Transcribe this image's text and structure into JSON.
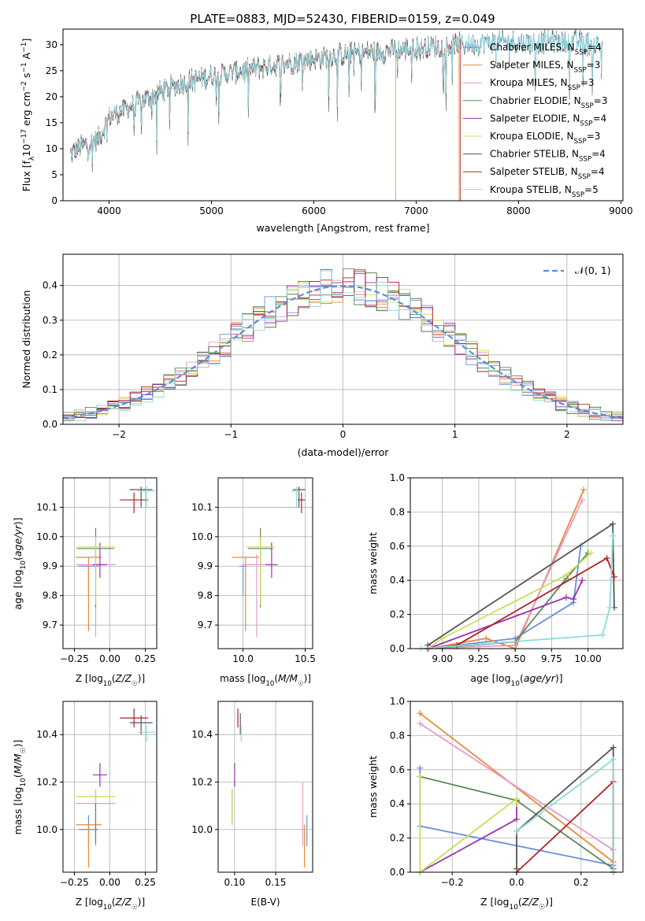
{
  "title": "PLATE=0883, MJD=52430, FIBERID=0159, z=0.049",
  "colors": [
    "#6a8fdb",
    "#e8893a",
    "#e99ac6",
    "#5a8a5a",
    "#9933b3",
    "#c7e05a",
    "#555555",
    "#b22222",
    "#8fd9dc"
  ],
  "chart_data": [
    {
      "id": "spectrum",
      "type": "line",
      "xlabel": "wavelength [Angstrom, rest frame]",
      "ylabel": "Flux [f_λ10^-17 erg cm^-2 s^-1 A^-1]",
      "xlim": [
        3550,
        9020
      ],
      "ylim": [
        0,
        33
      ],
      "xticks": [
        4000,
        5000,
        6000,
        7000,
        8000,
        9000
      ],
      "yticks": [
        0,
        5,
        10,
        15,
        20,
        25,
        30
      ],
      "continuum_x": [
        3620,
        3700,
        3800,
        3900,
        4000,
        4100,
        4200,
        4300,
        4400,
        4500,
        4700,
        5000,
        5300,
        5600,
        5900,
        6200,
        6500,
        6800,
        7100,
        7400,
        7700,
        8000,
        8300,
        8600,
        8800
      ],
      "continuum_y": [
        9,
        10,
        11,
        12,
        16,
        17,
        18,
        19,
        20,
        21,
        22.5,
        24,
        25,
        26,
        27,
        28,
        28.5,
        29,
        29.5,
        30,
        30.5,
        30.5,
        30.5,
        30.5,
        30
      ],
      "series": [
        {
          "name": "Chabrier MILES, N_SSP=4",
          "xmax": 8820
        },
        {
          "name": "Salpeter MILES, N_SSP=3",
          "xmax": 7420
        },
        {
          "name": "Kroupa MILES, N_SSP=3",
          "xmax": 7430
        },
        {
          "name": "Chabrier ELODIE, N_SSP=3",
          "xmax": 6800
        },
        {
          "name": "Salpeter ELODIE, N_SSP=4",
          "xmax": 6800
        },
        {
          "name": "Kroupa ELODIE, N_SSP=3",
          "xmax": 6800
        },
        {
          "name": "Chabrier STELIB, N_SSP=4",
          "xmax": 8820
        },
        {
          "name": "Salpeter STELIB, N_SSP=4",
          "xmax": 7430
        },
        {
          "name": "Kroupa STELIB, N_SSP=5",
          "xmax": 8820
        }
      ]
    },
    {
      "id": "residuals",
      "type": "line",
      "xlabel": "(data-model)/error",
      "ylabel": "Normed distribution",
      "xlim": [
        -2.5,
        2.5
      ],
      "ylim": [
        0,
        0.49
      ],
      "xticks": [
        -2,
        -1,
        0,
        1,
        2
      ],
      "yticks": [
        0.0,
        0.1,
        0.2,
        0.3,
        0.4
      ],
      "legend": "𝒩(0, 1)",
      "bin_width": 0.1
    },
    {
      "id": "age-vs-Z",
      "type": "scatter",
      "xlabel": "Z [log10(Z/Z☉)]",
      "ylabel": "age [log10(age/yr)]",
      "xlim": [
        -0.33,
        0.33
      ],
      "ylim": [
        9.62,
        10.2
      ],
      "xticks": [
        -0.25,
        0.0,
        0.25
      ],
      "xtick_labels": [
        "−0.25",
        "0.00",
        "0.25"
      ],
      "yticks": [
        9.7,
        9.8,
        9.9,
        10.0,
        10.1
      ],
      "yticklabels": [
        "9.7",
        "9.8",
        "9.9",
        "10.0",
        "10.1"
      ],
      "points": [
        {
          "x": -0.15,
          "y": 9.9,
          "xerr": 0.07,
          "ylo": 9.8,
          "yhi": 9.9
        },
        {
          "x": -0.15,
          "y": 9.93,
          "xerr": 0.09,
          "ylo": 9.68,
          "yhi": 9.93
        },
        {
          "x": -0.1,
          "y": 9.905,
          "xerr": 0.14,
          "ylo": 9.66,
          "yhi": 9.94
        },
        {
          "x": -0.1,
          "y": 9.96,
          "xerr": 0.13,
          "ylo": 9.76,
          "yhi": 10.03
        },
        {
          "x": -0.07,
          "y": 9.905,
          "xerr": 0.05,
          "ylo": 9.86,
          "yhi": 9.98
        },
        {
          "x": -0.1,
          "y": 9.965,
          "xerr": 0.14,
          "ylo": 9.77,
          "yhi": 10.0
        },
        {
          "x": 0.22,
          "y": 10.16,
          "xerr": 0.08,
          "ylo": 10.1,
          "yhi": 10.17
        },
        {
          "x": 0.17,
          "y": 10.125,
          "xerr": 0.1,
          "ylo": 10.08,
          "yhi": 10.15
        },
        {
          "x": 0.26,
          "y": 10.155,
          "xerr": 0.06,
          "ylo": 10.1,
          "yhi": 10.17
        }
      ]
    },
    {
      "id": "age-vs-mass",
      "type": "scatter",
      "xlabel": "mass [log10(M/M☉)]",
      "ylabel": "",
      "xlim": [
        9.8,
        10.56
      ],
      "ylim": [
        9.62,
        10.2
      ],
      "xticks": [
        10.0,
        10.5
      ],
      "xtick_labels": [
        "10.0",
        "10.5"
      ],
      "yticks": [
        9.7,
        9.8,
        9.9,
        10.0,
        10.1
      ],
      "yticklabels": [
        "9.7",
        "9.8",
        "9.9",
        "10.0",
        "10.1"
      ],
      "points": [
        {
          "x": 10.0,
          "y": 9.9,
          "xerr": 0.03,
          "ylo": 9.8,
          "yhi": 9.9
        },
        {
          "x": 10.02,
          "y": 9.93,
          "xerr": 0.11,
          "ylo": 9.68,
          "yhi": 9.93
        },
        {
          "x": 10.11,
          "y": 9.905,
          "xerr": 0.11,
          "ylo": 9.66,
          "yhi": 9.94
        },
        {
          "x": 10.14,
          "y": 9.96,
          "xerr": 0.1,
          "ylo": 9.76,
          "yhi": 10.03
        },
        {
          "x": 10.23,
          "y": 9.905,
          "xerr": 0.05,
          "ylo": 9.86,
          "yhi": 9.98
        },
        {
          "x": 10.14,
          "y": 9.965,
          "xerr": 0.12,
          "ylo": 9.77,
          "yhi": 10.0
        },
        {
          "x": 10.45,
          "y": 10.16,
          "xerr": 0.05,
          "ylo": 10.1,
          "yhi": 10.17
        },
        {
          "x": 10.47,
          "y": 10.125,
          "xerr": 0.03,
          "ylo": 10.08,
          "yhi": 10.15
        },
        {
          "x": 10.43,
          "y": 10.155,
          "xerr": 0.04,
          "ylo": 10.1,
          "yhi": 10.17
        }
      ]
    },
    {
      "id": "mass-weight-vs-age",
      "type": "line",
      "xlabel": "age [log10(age/yr)]",
      "ylabel": "mass weight",
      "xlim": [
        8.78,
        10.24
      ],
      "ylim": [
        0,
        1.0
      ],
      "xticks": [
        9.0,
        9.25,
        9.5,
        9.75,
        10.0
      ],
      "xtick_labels": [
        "9.00",
        "9.25",
        "9.50",
        "9.75",
        "10.00"
      ],
      "yticks": [
        0.0,
        0.2,
        0.4,
        0.6,
        0.8,
        1.0
      ],
      "yticklabels": [
        "0.0",
        "0.2",
        "0.4",
        "0.6",
        "0.8",
        "1.0"
      ],
      "series": [
        {
          "name": "Chabrier MILES",
          "x": [
            8.9,
            9.5,
            9.9,
            9.95
          ],
          "y": [
            0.0,
            0.06,
            0.27,
            0.6
          ]
        },
        {
          "name": "Salpeter MILES",
          "x": [
            8.9,
            9.3,
            9.5,
            9.97
          ],
          "y": [
            0.0,
            0.06,
            0.0,
            0.93
          ]
        },
        {
          "name": "Kroupa MILES",
          "x": [
            8.9,
            9.5,
            9.96
          ],
          "y": [
            0.0,
            0.02,
            0.87
          ]
        },
        {
          "name": "Chabrier ELODIE",
          "x": [
            8.9,
            9.5,
            9.85,
            10.0
          ],
          "y": [
            0.0,
            0.04,
            0.41,
            0.56
          ]
        },
        {
          "name": "Salpeter ELODIE",
          "x": [
            8.9,
            9.85,
            9.9,
            9.96
          ],
          "y": [
            0.0,
            0.3,
            0.29,
            0.4
          ]
        },
        {
          "name": "Kroupa ELODIE",
          "x": [
            8.9,
            9.0,
            9.85,
            10.02
          ],
          "y": [
            0.0,
            0.06,
            0.43,
            0.56
          ]
        },
        {
          "name": "Chabrier STELIB",
          "x": [
            8.9,
            10.17,
            10.18
          ],
          "y": [
            0.02,
            0.73,
            0.24
          ]
        },
        {
          "name": "Salpeter STELIB",
          "x": [
            8.9,
            9.1,
            10.13,
            10.18
          ],
          "y": [
            0.0,
            0.02,
            0.53,
            0.42
          ]
        },
        {
          "name": "Kroupa STELIB",
          "x": [
            8.85,
            10.1,
            10.15,
            10.17
          ],
          "y": [
            0.0,
            0.08,
            0.24,
            0.66
          ]
        }
      ]
    },
    {
      "id": "mass-vs-Z",
      "type": "scatter",
      "xlabel": "Z [log10(Z/Z☉)]",
      "ylabel": "mass [log10(M/M☉)]",
      "xlim": [
        -0.33,
        0.33
      ],
      "ylim": [
        9.82,
        10.54
      ],
      "xticks": [
        -0.25,
        0.0,
        0.25
      ],
      "xtick_labels": [
        "−0.25",
        "0.00",
        "0.25"
      ],
      "yticks": [
        10.0,
        10.2,
        10.4
      ],
      "yticklabels": [
        "10.0",
        "10.2",
        "10.4"
      ],
      "points": [
        {
          "x": -0.15,
          "y": 10.0,
          "xerr": 0.07,
          "ylo": 9.93,
          "yhi": 10.06
        },
        {
          "x": -0.15,
          "y": 10.02,
          "xerr": 0.09,
          "ylo": 9.84,
          "yhi": 10.02
        },
        {
          "x": -0.1,
          "y": 10.11,
          "xerr": 0.14,
          "ylo": 9.93,
          "yhi": 10.13
        },
        {
          "x": -0.1,
          "y": 10.14,
          "xerr": 0.13,
          "ylo": 9.94,
          "yhi": 10.17
        },
        {
          "x": -0.07,
          "y": 10.23,
          "xerr": 0.05,
          "ylo": 10.18,
          "yhi": 10.28
        },
        {
          "x": -0.1,
          "y": 10.14,
          "xerr": 0.14,
          "ylo": 10.11,
          "yhi": 10.17
        },
        {
          "x": 0.22,
          "y": 10.45,
          "xerr": 0.08,
          "ylo": 10.4,
          "yhi": 10.48
        },
        {
          "x": 0.17,
          "y": 10.47,
          "xerr": 0.1,
          "ylo": 10.43,
          "yhi": 10.51
        },
        {
          "x": 0.26,
          "y": 10.41,
          "xerr": 0.06,
          "ylo": 10.37,
          "yhi": 10.44
        }
      ]
    },
    {
      "id": "mass-vs-ebv",
      "type": "scatter",
      "xlabel": "E(B-V)",
      "ylabel": "",
      "xlim": [
        0.08,
        0.195
      ],
      "ylim": [
        9.82,
        10.54
      ],
      "xticks": [
        0.1,
        0.15
      ],
      "xtick_labels": [
        "0.10",
        "0.15"
      ],
      "yticks": [
        10.0,
        10.2,
        10.4
      ],
      "yticklabels": [
        "10.0",
        "10.2",
        "10.4"
      ],
      "points": [
        {
          "x": 0.188,
          "y": 10.0,
          "ylo": 9.93,
          "yhi": 10.06
        },
        {
          "x": 0.185,
          "y": 10.02,
          "ylo": 9.84,
          "yhi": 10.02
        },
        {
          "x": 0.183,
          "y": 10.11,
          "ylo": 9.93,
          "yhi": 10.2
        },
        {
          "x": 0.097,
          "y": 10.1,
          "ylo": 10.02,
          "yhi": 10.17
        },
        {
          "x": 0.1,
          "y": 10.23,
          "ylo": 10.18,
          "yhi": 10.28
        },
        {
          "x": 0.097,
          "y": 10.1,
          "ylo": 10.02,
          "yhi": 10.17
        },
        {
          "x": 0.107,
          "y": 10.45,
          "ylo": 10.4,
          "yhi": 10.49
        },
        {
          "x": 0.104,
          "y": 10.47,
          "ylo": 10.43,
          "yhi": 10.51
        },
        {
          "x": 0.108,
          "y": 10.41,
          "ylo": 10.37,
          "yhi": 10.44
        }
      ]
    },
    {
      "id": "mass-weight-vs-Z",
      "type": "line",
      "xlabel": "Z [log10(Z/Z☉)]",
      "ylabel": "mass weight",
      "xlim": [
        -0.33,
        0.33
      ],
      "ylim": [
        0,
        1.0
      ],
      "xticks": [
        -0.2,
        0.0,
        0.2
      ],
      "xtick_labels": [
        "−0.2",
        "0.0",
        "0.2"
      ],
      "yticks": [
        0.0,
        0.2,
        0.4,
        0.6,
        0.8,
        1.0
      ],
      "yticklabels": [
        "0.0",
        "0.2",
        "0.4",
        "0.6",
        "0.8",
        "1.0"
      ],
      "series": [
        {
          "name": "Chabrier MILES",
          "x": [
            -0.3,
            -0.3,
            0.3
          ],
          "y": [
            0.61,
            0.27,
            0.04
          ]
        },
        {
          "name": "Salpeter MILES",
          "x": [
            -0.3,
            0.3
          ],
          "y": [
            0.93,
            0.06
          ]
        },
        {
          "name": "Kroupa MILES",
          "x": [
            -0.3,
            0.3
          ],
          "y": [
            0.87,
            0.13
          ]
        },
        {
          "name": "Chabrier ELODIE",
          "x": [
            -0.3,
            0.0,
            0.3,
            0.3
          ],
          "y": [
            0.56,
            0.42,
            0.02,
            0.0
          ]
        },
        {
          "name": "Salpeter ELODIE",
          "x": [
            -0.3,
            0.0,
            0.0
          ],
          "y": [
            0.0,
            0.31,
            0.42
          ]
        },
        {
          "name": "Kroupa ELODIE",
          "x": [
            -0.3,
            -0.3,
            0.0,
            0.0
          ],
          "y": [
            0.56,
            0.0,
            0.43,
            0.4
          ]
        },
        {
          "name": "Chabrier STELIB",
          "x": [
            0.0,
            0.0,
            0.3,
            0.3
          ],
          "y": [
            0.02,
            0.24,
            0.73,
            0.0
          ]
        },
        {
          "name": "Salpeter STELIB",
          "x": [
            0.0,
            0.3,
            0.3
          ],
          "y": [
            0.0,
            0.53,
            0.0
          ]
        },
        {
          "name": "Kroupa STELIB",
          "x": [
            0.0,
            0.0,
            0.3,
            0.3
          ],
          "y": [
            0.24,
            0.24,
            0.66,
            0.0
          ]
        }
      ]
    }
  ]
}
